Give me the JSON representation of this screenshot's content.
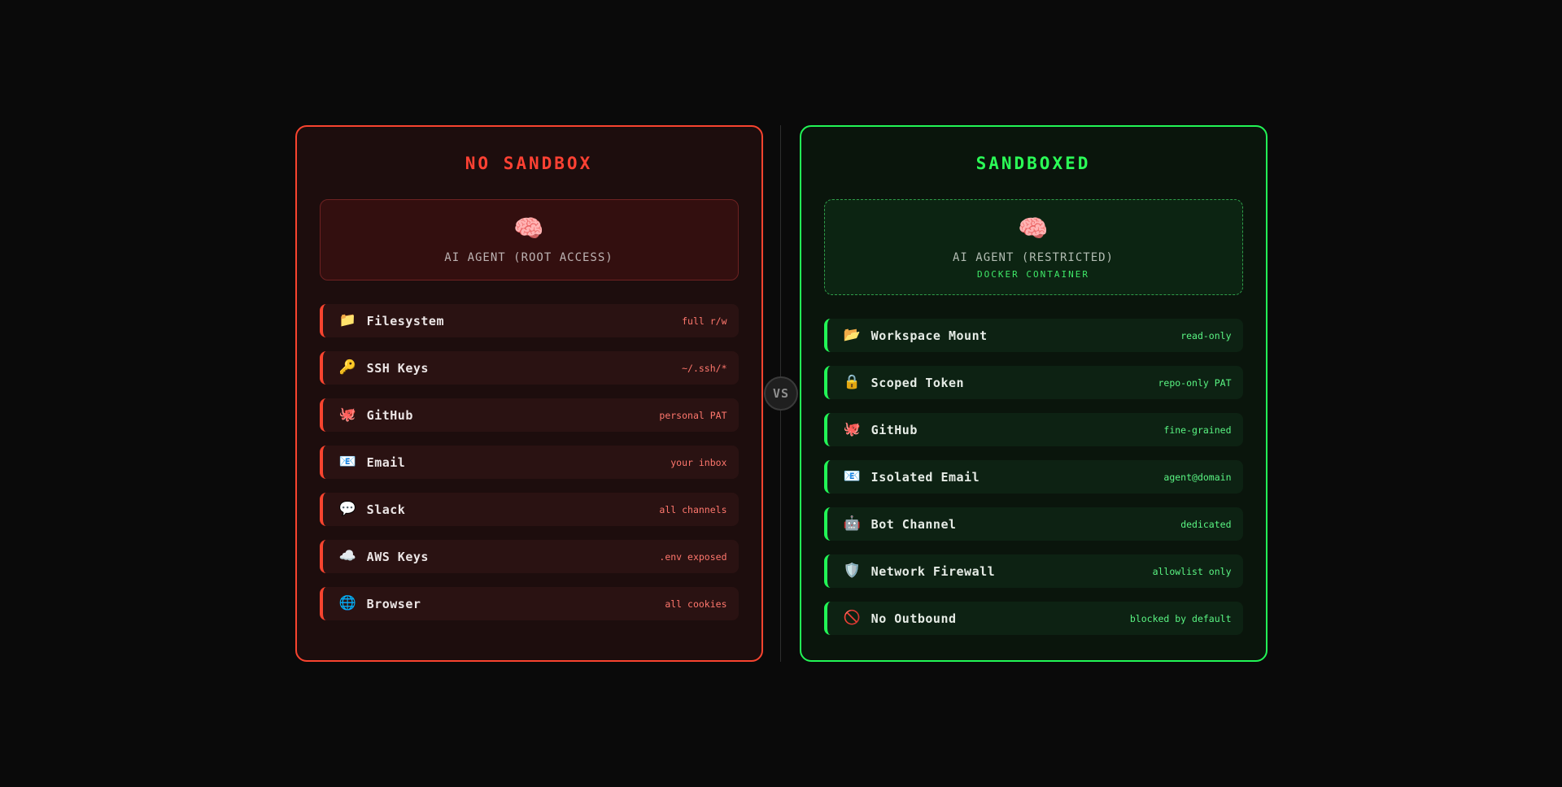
{
  "page": {
    "background_color": "#0a0a0a"
  },
  "vs_badge": {
    "label": "VS"
  },
  "left_panel": {
    "title": "NO SANDBOX",
    "accent_color": "#f8442f",
    "title_color": "#ff4133",
    "value_color": "#ff776d",
    "agent": {
      "icon": "🧠",
      "label": "AI AGENT (ROOT ACCESS)"
    },
    "items": [
      {
        "icon": "📁",
        "label": "Filesystem",
        "value": "full r/w"
      },
      {
        "icon": "🔑",
        "label": "SSH Keys",
        "value": "~/.ssh/*"
      },
      {
        "icon": "🐙",
        "label": "GitHub",
        "value": "personal PAT"
      },
      {
        "icon": "📧",
        "label": "Email",
        "value": "your inbox"
      },
      {
        "icon": "💬",
        "label": "Slack",
        "value": "all channels"
      },
      {
        "icon": "☁️",
        "label": "AWS Keys",
        "value": ".env exposed"
      },
      {
        "icon": "🌐",
        "label": "Browser",
        "value": "all cookies"
      }
    ]
  },
  "right_panel": {
    "title": "SANDBOXED",
    "accent_color": "#22f556",
    "title_color": "#2bff57",
    "value_color": "#5af583",
    "agent": {
      "icon": "🧠",
      "label": "AI AGENT (RESTRICTED)",
      "sublabel": "DOCKER CONTAINER"
    },
    "items": [
      {
        "icon": "📂",
        "label": "Workspace Mount",
        "value": "read-only"
      },
      {
        "icon": "🔒",
        "label": "Scoped Token",
        "value": "repo-only PAT"
      },
      {
        "icon": "🐙",
        "label": "GitHub",
        "value": "fine-grained"
      },
      {
        "icon": "📧",
        "label": "Isolated Email",
        "value": "agent@domain"
      },
      {
        "icon": "🤖",
        "label": "Bot Channel",
        "value": "dedicated"
      },
      {
        "icon": "🛡️",
        "label": "Network Firewall",
        "value": "allowlist only"
      },
      {
        "icon": "🚫",
        "label": "No Outbound",
        "value": "blocked by default"
      }
    ]
  }
}
